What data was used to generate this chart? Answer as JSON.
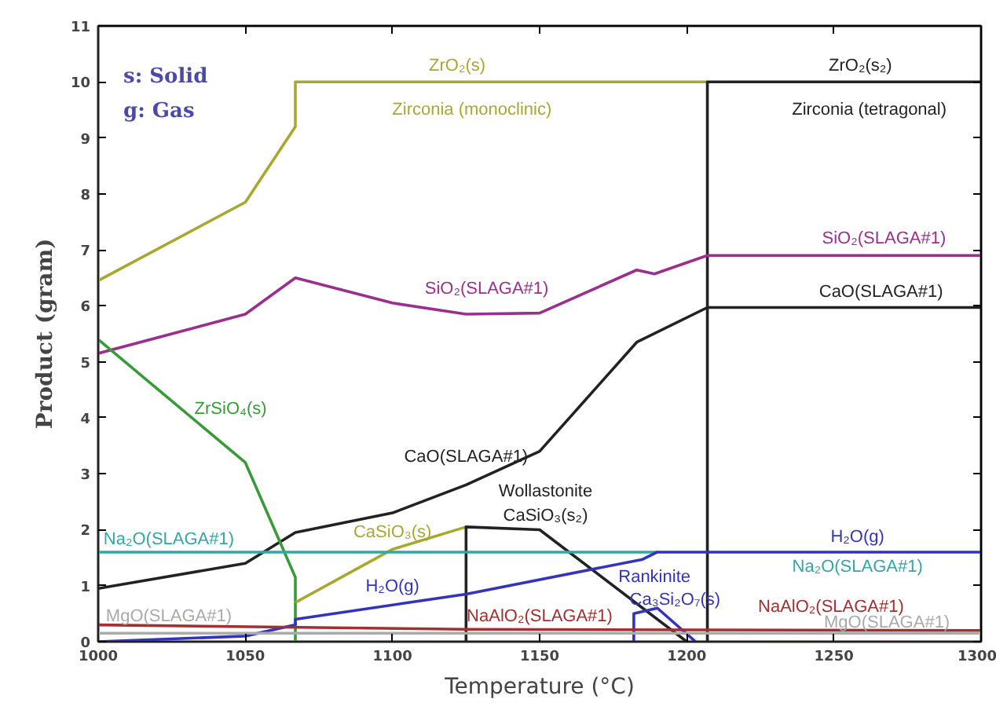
{
  "chart_data": {
    "type": "line",
    "xlabel": "Temperature (°C)",
    "ylabel": "Product (gram)",
    "xlim": [
      1000,
      1300
    ],
    "xticks": [
      1000,
      1050,
      1100,
      1150,
      1200,
      1250,
      1300
    ],
    "ylim": [
      0,
      11
    ],
    "yticks": [
      0,
      1,
      2,
      3,
      4,
      5,
      6,
      7,
      8,
      9,
      10,
      11
    ],
    "grid": false,
    "legend": false,
    "marker": "none",
    "line_style": "solid",
    "series": [
      {
        "name": "ZrO₂(s)",
        "color": "#a8a830",
        "x": [
          1000,
          1050,
          1067,
          1067,
          1207
        ],
        "values": [
          6.45,
          7.85,
          9.2,
          10,
          10
        ]
      },
      {
        "name": "ZrO₂(s₂)",
        "color": "#222222",
        "x": [
          1207,
          1207,
          1300
        ],
        "values": [
          0,
          10,
          10
        ]
      },
      {
        "name": "SiO₂(SLAGA#1)",
        "color": "#9b2f8e",
        "x": [
          1000,
          1050,
          1067,
          1100,
          1125,
          1150,
          1183,
          1189,
          1207,
          1300
        ],
        "values": [
          5.15,
          5.85,
          6.5,
          6.05,
          5.85,
          5.87,
          6.64,
          6.57,
          6.9,
          6.9
        ]
      },
      {
        "name": "CaO(SLAGA#1)",
        "color": "#222222",
        "x": [
          1000,
          1050,
          1067,
          1100,
          1125,
          1150,
          1183,
          1207,
          1300
        ],
        "values": [
          0.95,
          1.4,
          1.95,
          2.3,
          2.8,
          3.4,
          5.35,
          5.97,
          5.97
        ]
      },
      {
        "name": "ZrSiO₄(s)",
        "color": "#3a9a3a",
        "x": [
          1000,
          1050,
          1067,
          1067
        ],
        "values": [
          5.4,
          3.2,
          1.15,
          0
        ]
      },
      {
        "name": "CaSiO₃(s)",
        "color": "#a8a830",
        "x": [
          1067,
          1100,
          1125
        ],
        "values": [
          0.7,
          1.65,
          2.05
        ]
      },
      {
        "name": "CaSiO₃(s₂)",
        "color": "#222222",
        "x": [
          1125,
          1125,
          1150,
          1200
        ],
        "values": [
          0,
          2.05,
          2.0,
          0
        ]
      },
      {
        "name": "Ca₃Si₂O₇(s)",
        "color": "#3333bb",
        "x": [
          1182,
          1182,
          1190,
          1203
        ],
        "values": [
          0,
          0.5,
          0.6,
          0
        ]
      },
      {
        "name": "Na₂O(SLAGA#1)",
        "color": "#33a6a6",
        "x": [
          1000,
          1190
        ],
        "values": [
          1.6,
          1.6
        ]
      },
      {
        "name": "H₂O(g)",
        "color": "#3333bb",
        "x": [
          1000,
          1050,
          1067,
          1067,
          1125,
          1185,
          1190,
          1300
        ],
        "values": [
          0,
          0.1,
          0.3,
          0.4,
          0.85,
          1.47,
          1.6,
          1.6
        ]
      },
      {
        "name": "NaAlO₂(SLAGA#1)",
        "color": "#a33030",
        "x": [
          1000,
          1125,
          1300
        ],
        "values": [
          0.3,
          0.22,
          0.2
        ]
      },
      {
        "name": "MgO(SLAGA#1)",
        "color": "#aaaaaa",
        "x": [
          1000,
          1300
        ],
        "values": [
          0.15,
          0.15
        ]
      }
    ],
    "annotations": [
      "s: Solid",
      "g: Gas",
      "Zirconia (monoclinic)",
      "Zirconia (tetragonal)",
      "Wollastonite",
      "Rankinite"
    ]
  }
}
